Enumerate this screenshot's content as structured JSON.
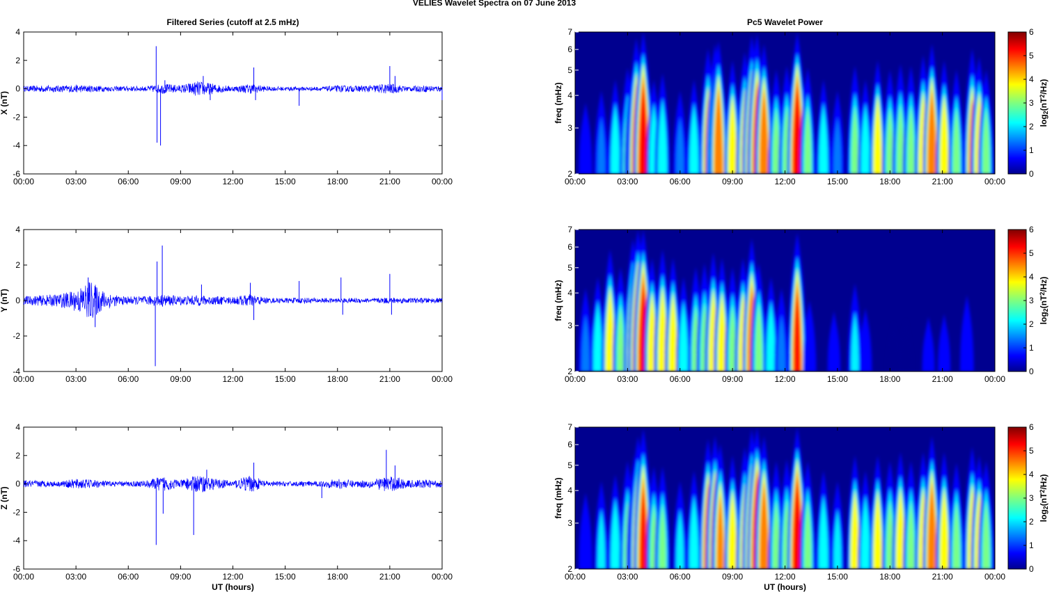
{
  "figure": {
    "title": "VELIES Wavelet Spectra on 07 June      2013",
    "left_column_title": "Filtered Series (cutoff at 2.5 mHz)",
    "right_column_title": "Pc5 Wavelet Power"
  },
  "chart_data": [
    {
      "type": "line",
      "panel": "X",
      "title": "Filtered Series (cutoff at 2.5 mHz)",
      "ylabel": "X (nT)",
      "xlabel": "",
      "ylim": [
        -6,
        4
      ],
      "yticks": [
        "4",
        "2",
        "0",
        "-2",
        "-4",
        "-6"
      ],
      "yticks_values": [
        4,
        2,
        0,
        -2,
        -4,
        -6
      ],
      "xlim_hours": [
        0,
        24
      ],
      "xticks": [
        "00:00",
        "03:00",
        "06:00",
        "09:00",
        "12:00",
        "15:00",
        "18:00",
        "21:00",
        "00:00"
      ],
      "color": "#0000ff",
      "grid": false,
      "series": [
        {
          "noise_envelope": [
            [
              0,
              0.15
            ],
            [
              1,
              0.2
            ],
            [
              2,
              0.2
            ],
            [
              3,
              0.22
            ],
            [
              4,
              0.2
            ],
            [
              5,
              0.15
            ],
            [
              6,
              0.15
            ],
            [
              7,
              0.15
            ],
            [
              8,
              0.3
            ],
            [
              9,
              0.22
            ],
            [
              10,
              0.45
            ],
            [
              11,
              0.28
            ],
            [
              12,
              0.15
            ],
            [
              13,
              0.3
            ],
            [
              14,
              0.14
            ],
            [
              15,
              0.12
            ],
            [
              16,
              0.12
            ],
            [
              17,
              0.12
            ],
            [
              18,
              0.2
            ],
            [
              19,
              0.18
            ],
            [
              20,
              0.22
            ],
            [
              21,
              0.32
            ],
            [
              22,
              0.15
            ],
            [
              23,
              0.2
            ],
            [
              24,
              0.18
            ]
          ],
          "spikes": [
            [
              7.6,
              3.0
            ],
            [
              7.65,
              -3.8
            ],
            [
              7.85,
              -4.0
            ],
            [
              8.1,
              0.6
            ],
            [
              10.3,
              0.9
            ],
            [
              10.7,
              -0.8
            ],
            [
              13.2,
              1.5
            ],
            [
              13.3,
              -0.8
            ],
            [
              15.8,
              -1.2
            ],
            [
              21,
              1.6
            ],
            [
              21.3,
              0.9
            ],
            [
              24,
              -0.8
            ]
          ]
        }
      ]
    },
    {
      "type": "line",
      "panel": "Y",
      "ylabel": "Y (nT)",
      "xlabel": "",
      "ylim": [
        -4,
        4
      ],
      "yticks": [
        "4",
        "2",
        "0",
        "-2",
        "-4"
      ],
      "yticks_values": [
        4,
        2,
        0,
        -2,
        -4
      ],
      "xlim_hours": [
        0,
        24
      ],
      "xticks": [
        "00:00",
        "03:00",
        "06:00",
        "09:00",
        "12:00",
        "15:00",
        "18:00",
        "21:00",
        "00:00"
      ],
      "color": "#0000ff",
      "grid": false,
      "series": [
        {
          "noise_envelope": [
            [
              0,
              0.2
            ],
            [
              1,
              0.25
            ],
            [
              2,
              0.3
            ],
            [
              3,
              0.5
            ],
            [
              3.8,
              0.95
            ],
            [
              4.5,
              0.5
            ],
            [
              5.5,
              0.2
            ],
            [
              7,
              0.2
            ],
            [
              8,
              0.28
            ],
            [
              9,
              0.22
            ],
            [
              10,
              0.25
            ],
            [
              11,
              0.2
            ],
            [
              12,
              0.18
            ],
            [
              13,
              0.3
            ],
            [
              14,
              0.12
            ],
            [
              15,
              0.12
            ],
            [
              16,
              0.14
            ],
            [
              17,
              0.12
            ],
            [
              18,
              0.1
            ],
            [
              19,
              0.12
            ],
            [
              20,
              0.1
            ],
            [
              21,
              0.15
            ],
            [
              22,
              0.12
            ],
            [
              24,
              0.12
            ]
          ],
          "spikes": [
            [
              3.7,
              1.3
            ],
            [
              4.1,
              -1.5
            ],
            [
              7.55,
              -3.7
            ],
            [
              7.65,
              2.2
            ],
            [
              7.95,
              3.1
            ],
            [
              10.2,
              0.9
            ],
            [
              13,
              1.0
            ],
            [
              13.2,
              -1.1
            ],
            [
              15.8,
              1.1
            ],
            [
              18.2,
              1.3
            ],
            [
              18.3,
              -0.8
            ],
            [
              21,
              1.5
            ],
            [
              21.1,
              -0.8
            ]
          ]
        }
      ]
    },
    {
      "type": "line",
      "panel": "Z",
      "ylabel": "Z (nT)",
      "xlabel": "UT (hours)",
      "ylim": [
        -6,
        4
      ],
      "yticks": [
        "4",
        "2",
        "0",
        "-2",
        "-4",
        "-6"
      ],
      "yticks_values": [
        4,
        2,
        0,
        -2,
        -4,
        -6
      ],
      "xlim_hours": [
        0,
        24
      ],
      "xticks": [
        "00:00",
        "03:00",
        "06:00",
        "09:00",
        "12:00",
        "15:00",
        "18:00",
        "21:00",
        "00:00"
      ],
      "color": "#0000ff",
      "grid": false,
      "series": [
        {
          "noise_envelope": [
            [
              0,
              0.2
            ],
            [
              1,
              0.2
            ],
            [
              2,
              0.15
            ],
            [
              3,
              0.3
            ],
            [
              4,
              0.25
            ],
            [
              5,
              0.15
            ],
            [
              6,
              0.15
            ],
            [
              7,
              0.2
            ],
            [
              8,
              0.45
            ],
            [
              9,
              0.22
            ],
            [
              10,
              0.55
            ],
            [
              11,
              0.3
            ],
            [
              12,
              0.2
            ],
            [
              13,
              0.5
            ],
            [
              14,
              0.15
            ],
            [
              15,
              0.15
            ],
            [
              16,
              0.15
            ],
            [
              17,
              0.15
            ],
            [
              18,
              0.3
            ],
            [
              19,
              0.2
            ],
            [
              20,
              0.25
            ],
            [
              20.8,
              0.45
            ],
            [
              21.5,
              0.4
            ],
            [
              22,
              0.22
            ],
            [
              23,
              0.25
            ],
            [
              24,
              0.2
            ]
          ],
          "spikes": [
            [
              7.6,
              -4.3
            ],
            [
              8.0,
              -2.1
            ],
            [
              9.75,
              -3.6
            ],
            [
              10.5,
              1.0
            ],
            [
              13.2,
              1.5
            ],
            [
              17.1,
              -1.0
            ],
            [
              20.8,
              2.4
            ],
            [
              21.3,
              1.3
            ]
          ]
        }
      ]
    },
    {
      "type": "heatmap",
      "panel": "X",
      "title": "Pc5 Wavelet Power",
      "ylabel": "freq (mHz)",
      "xlabel": "",
      "y_scale": "log",
      "ylim": [
        2,
        7
      ],
      "yticks": [
        "7",
        "6",
        "5",
        "4",
        "3",
        "2"
      ],
      "yticks_values": [
        7,
        6,
        5,
        4,
        3,
        2
      ],
      "xlim_hours": [
        0,
        24
      ],
      "xticks": [
        "00:00",
        "03:00",
        "06:00",
        "09:00",
        "12:00",
        "15:00",
        "18:00",
        "21:00",
        "00:00"
      ],
      "colorbar": {
        "label_base": "log",
        "label_sub": "2",
        "label_mid": "(nT",
        "label_sup": "2",
        "label_end": "/Hz)",
        "range": [
          0,
          6
        ],
        "ticks": [
          "6",
          "5",
          "4",
          "3",
          "2",
          "1",
          "0"
        ],
        "colormap": "jet"
      },
      "blobs": [
        [
          0.6,
          1.6
        ],
        [
          1.5,
          2.1
        ],
        [
          2.3,
          2.6
        ],
        [
          3.0,
          3.2
        ],
        [
          3.3,
          3.4
        ],
        [
          3.5,
          5.0
        ],
        [
          3.9,
          5.5
        ],
        [
          4.5,
          2.6
        ],
        [
          5.0,
          2.9
        ],
        [
          6.0,
          2.1
        ],
        [
          6.8,
          2.6
        ],
        [
          7.6,
          4.3
        ],
        [
          8.0,
          4.6
        ],
        [
          8.2,
          4.8
        ],
        [
          9.0,
          3.6
        ],
        [
          9.7,
          4.1
        ],
        [
          10.1,
          5.2
        ],
        [
          10.4,
          5.3
        ],
        [
          10.8,
          4.6
        ],
        [
          11.5,
          3.1
        ],
        [
          12.1,
          3.3
        ],
        [
          12.7,
          5.8
        ],
        [
          13.3,
          3.2
        ],
        [
          14.2,
          2.6
        ],
        [
          15.0,
          2.1
        ],
        [
          16.0,
          3.3
        ],
        [
          16.6,
          2.6
        ],
        [
          17.3,
          3.6
        ],
        [
          18.0,
          3.1
        ],
        [
          18.6,
          3.4
        ],
        [
          19.2,
          3.3
        ],
        [
          19.9,
          3.9
        ],
        [
          20.4,
          4.6
        ],
        [
          21.1,
          3.6
        ],
        [
          21.8,
          3.1
        ],
        [
          22.7,
          4.3
        ],
        [
          23.1,
          3.8
        ],
        [
          23.5,
          3.1
        ]
      ]
    },
    {
      "type": "heatmap",
      "panel": "Y",
      "ylabel": "freq (mHz)",
      "xlabel": "",
      "y_scale": "log",
      "ylim": [
        2,
        7
      ],
      "yticks": [
        "7",
        "6",
        "5",
        "4",
        "3",
        "2"
      ],
      "yticks_values": [
        7,
        6,
        5,
        4,
        3,
        2
      ],
      "xlim_hours": [
        0,
        24
      ],
      "xticks": [
        "00:00",
        "03:00",
        "06:00",
        "09:00",
        "12:00",
        "15:00",
        "18:00",
        "21:00",
        "00:00"
      ],
      "colorbar": {
        "label_base": "log",
        "label_sub": "2",
        "label_mid": "(nT",
        "label_sup": "2",
        "label_end": "/Hz)",
        "range": [
          0,
          6
        ],
        "ticks": [
          "6",
          "5",
          "4",
          "3",
          "2",
          "1",
          "0"
        ],
        "colormap": "jet"
      },
      "blobs": [
        [
          0.6,
          2.1
        ],
        [
          1.3,
          2.6
        ],
        [
          2.0,
          4.1
        ],
        [
          2.6,
          3.1
        ],
        [
          3.3,
          4.8
        ],
        [
          3.6,
          6.0
        ],
        [
          3.9,
          5.6
        ],
        [
          4.4,
          3.6
        ],
        [
          5.0,
          4.1
        ],
        [
          5.6,
          3.6
        ],
        [
          6.2,
          2.6
        ],
        [
          6.9,
          3.1
        ],
        [
          7.4,
          3.3
        ],
        [
          7.9,
          3.9
        ],
        [
          8.4,
          3.6
        ],
        [
          9.0,
          3.1
        ],
        [
          9.6,
          3.6
        ],
        [
          10.1,
          4.8
        ],
        [
          10.5,
          3.3
        ],
        [
          11.2,
          2.6
        ],
        [
          11.8,
          2.1
        ],
        [
          12.7,
          5.2
        ],
        [
          13.4,
          1.6
        ],
        [
          14.8,
          1.2
        ],
        [
          16.0,
          2.3
        ],
        [
          16.6,
          1.3
        ],
        [
          18.2,
          0.8
        ],
        [
          18.9,
          0.9
        ],
        [
          20.2,
          1.0
        ],
        [
          21.1,
          1.1
        ],
        [
          22.4,
          1.8
        ]
      ]
    },
    {
      "type": "heatmap",
      "panel": "Z",
      "ylabel": "freq (mHz)",
      "xlabel": "UT (hours)",
      "y_scale": "log",
      "ylim": [
        2,
        7
      ],
      "yticks": [
        "7",
        "6",
        "5",
        "4",
        "3",
        "2"
      ],
      "yticks_values": [
        7,
        6,
        5,
        4,
        3,
        2
      ],
      "xlim_hours": [
        0,
        24
      ],
      "xticks": [
        "00:00",
        "03:00",
        "06:00",
        "09:00",
        "12:00",
        "15:00",
        "18:00",
        "21:00",
        "00:00"
      ],
      "colorbar": {
        "label_base": "log",
        "label_sub": "2",
        "label_mid": "(nT",
        "label_sup": "2",
        "label_end": "/Hz)",
        "range": [
          0,
          6
        ],
        "ticks": [
          "6",
          "5",
          "4",
          "3",
          "2",
          "1",
          "0"
        ],
        "colormap": "jet"
      },
      "blobs": [
        [
          0.6,
          1.8
        ],
        [
          1.5,
          2.3
        ],
        [
          2.3,
          2.6
        ],
        [
          3.0,
          3.3
        ],
        [
          3.4,
          3.6
        ],
        [
          3.6,
          4.8
        ],
        [
          3.9,
          5.3
        ],
        [
          4.5,
          3.0
        ],
        [
          5.0,
          3.0
        ],
        [
          6.0,
          2.3
        ],
        [
          6.8,
          2.8
        ],
        [
          7.6,
          4.6
        ],
        [
          8.0,
          4.8
        ],
        [
          8.3,
          4.3
        ],
        [
          9.0,
          3.6
        ],
        [
          9.7,
          4.1
        ],
        [
          10.1,
          5.3
        ],
        [
          10.4,
          5.5
        ],
        [
          10.8,
          4.8
        ],
        [
          11.5,
          3.3
        ],
        [
          12.1,
          3.4
        ],
        [
          12.7,
          5.8
        ],
        [
          13.3,
          3.3
        ],
        [
          14.2,
          2.8
        ],
        [
          15.0,
          2.3
        ],
        [
          16.0,
          3.6
        ],
        [
          16.6,
          2.8
        ],
        [
          17.3,
          3.6
        ],
        [
          18.0,
          3.3
        ],
        [
          18.6,
          3.8
        ],
        [
          19.2,
          3.3
        ],
        [
          19.9,
          3.8
        ],
        [
          20.4,
          4.8
        ],
        [
          21.1,
          3.8
        ],
        [
          21.8,
          3.2
        ],
        [
          22.7,
          4.1
        ],
        [
          23.1,
          3.6
        ],
        [
          23.5,
          3.3
        ]
      ]
    }
  ]
}
